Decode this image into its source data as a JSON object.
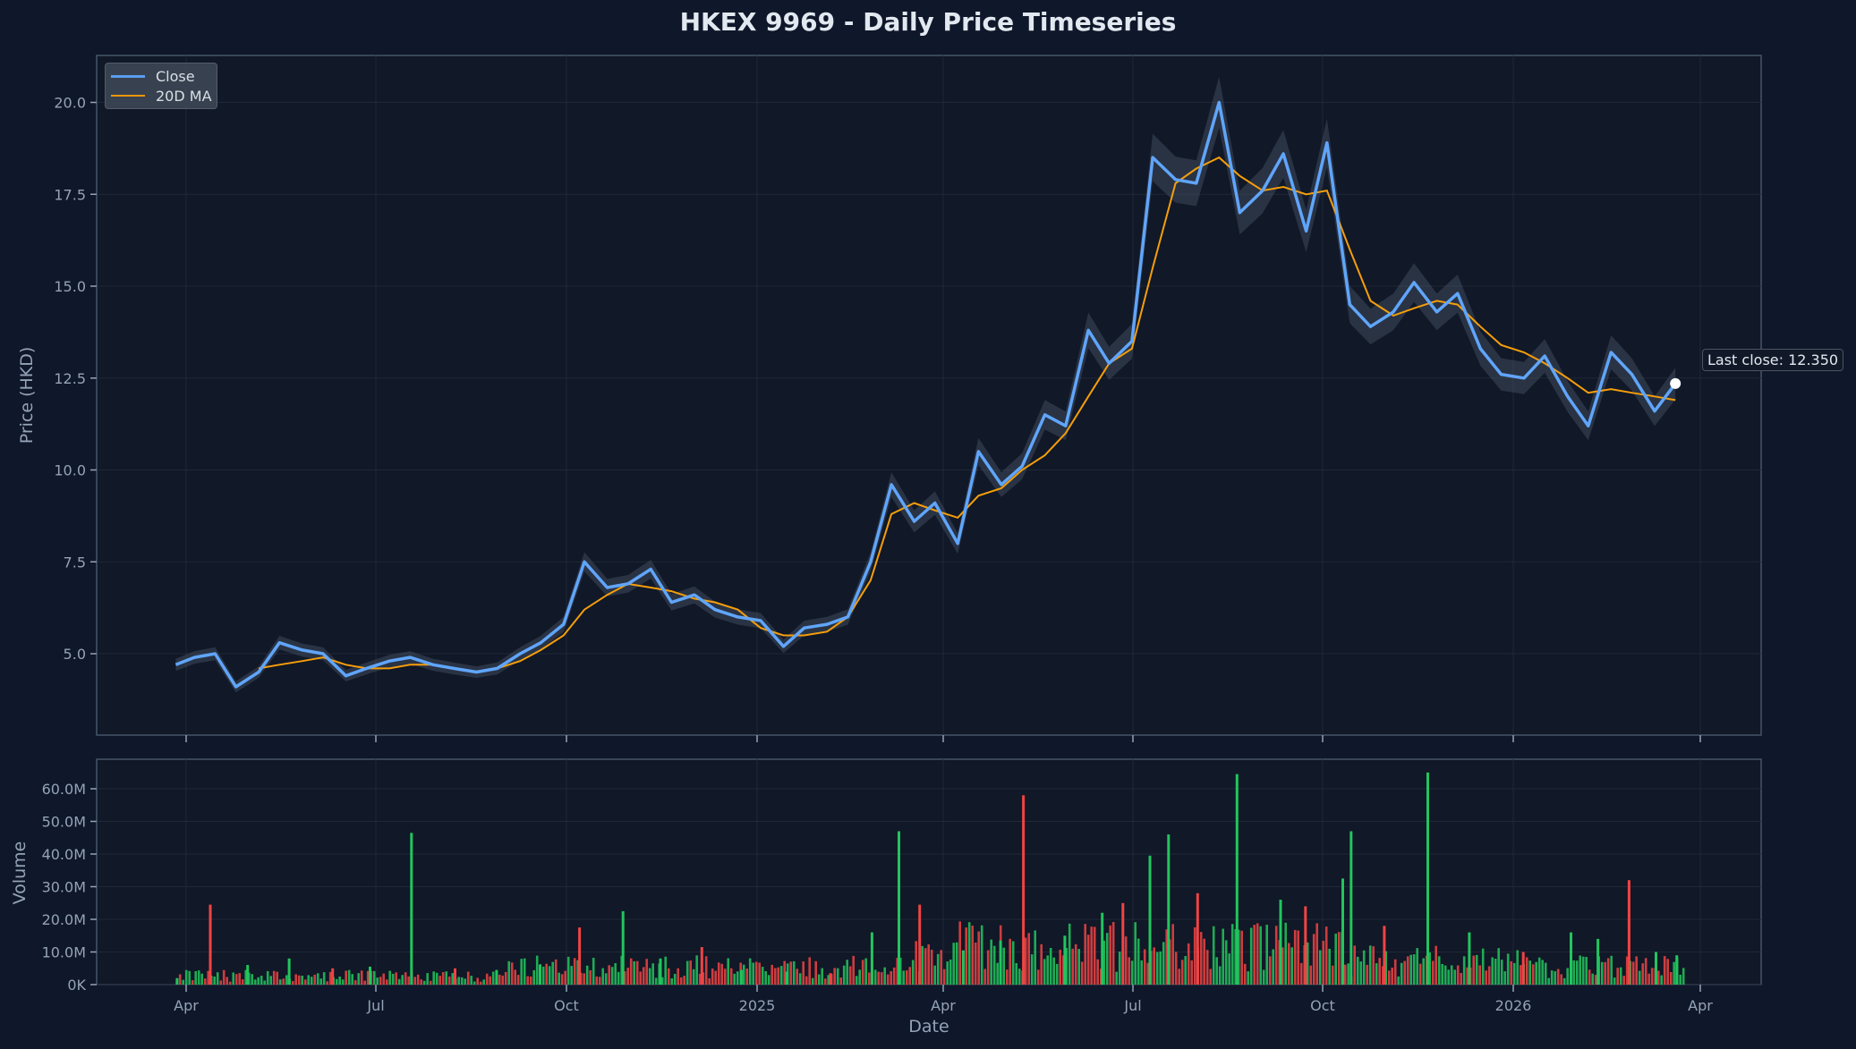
{
  "title": "HKEX 9969 - Daily Price Timeseries",
  "colors": {
    "background": "#0f172a",
    "plot_bg": "#111827",
    "close_line": "#60a5fa",
    "ma_line": "#f59e0b",
    "band": "#475569",
    "volume_up": "#22c55e",
    "volume_down": "#ef4444",
    "grid": "#1f2937",
    "axis": "#475569",
    "text": "#94a3b8"
  },
  "legend": {
    "items": [
      {
        "label": "Close",
        "color": "#60a5fa"
      },
      {
        "label": "20D MA",
        "color": "#f59e0b"
      }
    ]
  },
  "annotation": {
    "label": "Last close: 12.350"
  },
  "price_axis": {
    "label": "Price (HKD)",
    "ticks": [
      "5.0",
      "7.5",
      "10.0",
      "12.5",
      "15.0",
      "17.5",
      "20.0"
    ]
  },
  "volume_axis": {
    "label": "Volume",
    "ticks": [
      "0K",
      "10.0M",
      "20.0M",
      "30.0M",
      "40.0M",
      "50.0M",
      "60.0M"
    ]
  },
  "x_axis": {
    "label": "Date",
    "ticks": [
      "Apr",
      "Jul",
      "Oct",
      "2025",
      "Apr",
      "Jul",
      "Oct",
      "2026",
      "Apr"
    ]
  },
  "chart_data": [
    {
      "type": "line",
      "title": "HKEX 9969 - Daily Price Timeseries",
      "xlabel": "",
      "ylabel": "Price (HKD)",
      "ylim": [
        2.8,
        21.3
      ],
      "grid": true,
      "legend_position": "upper left",
      "x_tick_labels": [
        "Apr",
        "Jul",
        "Oct",
        "2025",
        "Apr",
        "Jul",
        "Oct",
        "2026",
        "Apr"
      ],
      "x": [
        "2024-03-27",
        "2024-04-05",
        "2024-04-15",
        "2024-04-25",
        "2024-05-06",
        "2024-05-16",
        "2024-05-27",
        "2024-06-06",
        "2024-06-17",
        "2024-06-27",
        "2024-07-08",
        "2024-07-18",
        "2024-07-29",
        "2024-08-08",
        "2024-08-19",
        "2024-08-29",
        "2024-09-09",
        "2024-09-19",
        "2024-09-30",
        "2024-10-10",
        "2024-10-21",
        "2024-10-31",
        "2024-11-11",
        "2024-11-21",
        "2024-12-02",
        "2024-12-12",
        "2024-12-23",
        "2025-01-03",
        "2025-01-14",
        "2025-01-24",
        "2025-02-04",
        "2025-02-14",
        "2025-02-25",
        "2025-03-07",
        "2025-03-18",
        "2025-03-28",
        "2025-04-08",
        "2025-04-18",
        "2025-04-29",
        "2025-05-09",
        "2025-05-20",
        "2025-05-30",
        "2025-06-10",
        "2025-06-20",
        "2025-07-01",
        "2025-07-11",
        "2025-07-22",
        "2025-08-01",
        "2025-08-12",
        "2025-08-22",
        "2025-09-02",
        "2025-09-12",
        "2025-09-23",
        "2025-10-03",
        "2025-10-14",
        "2025-10-24",
        "2025-11-04",
        "2025-11-14",
        "2025-11-25",
        "2025-12-05",
        "2025-12-16",
        "2025-12-26",
        "2026-01-06",
        "2026-01-16",
        "2026-01-27",
        "2026-02-06",
        "2026-02-17",
        "2026-02-27",
        "2026-03-10",
        "2026-03-20"
      ],
      "series": [
        {
          "name": "Close",
          "values": [
            4.7,
            4.9,
            5.0,
            4.1,
            4.5,
            5.3,
            5.1,
            5.0,
            4.4,
            4.6,
            4.8,
            4.9,
            4.7,
            4.6,
            4.5,
            4.6,
            5.0,
            5.3,
            5.8,
            7.5,
            6.8,
            6.9,
            7.3,
            6.4,
            6.6,
            6.2,
            6.0,
            5.9,
            5.2,
            5.7,
            5.8,
            6.0,
            7.5,
            9.6,
            8.6,
            9.1,
            8.0,
            10.5,
            9.6,
            10.1,
            11.5,
            11.2,
            13.8,
            12.9,
            13.5,
            18.5,
            17.9,
            17.8,
            20.0,
            17.0,
            17.6,
            18.6,
            16.5,
            18.9,
            14.5,
            13.9,
            14.3,
            15.1,
            14.3,
            14.8,
            13.3,
            12.6,
            12.5,
            13.1,
            12.0,
            11.2,
            13.2,
            12.6,
            11.6,
            12.35
          ]
        },
        {
          "name": "20D MA",
          "values": [
            null,
            null,
            null,
            null,
            4.6,
            4.7,
            4.8,
            4.9,
            4.7,
            4.6,
            4.6,
            4.7,
            4.7,
            4.6,
            4.5,
            4.6,
            4.8,
            5.1,
            5.5,
            6.2,
            6.6,
            6.9,
            6.8,
            6.7,
            6.5,
            6.4,
            6.2,
            5.7,
            5.5,
            5.5,
            5.6,
            6.0,
            7.0,
            8.8,
            9.1,
            8.9,
            8.7,
            9.3,
            9.5,
            10.0,
            10.4,
            11.0,
            12.0,
            12.9,
            13.3,
            15.5,
            17.8,
            18.2,
            18.5,
            18.0,
            17.6,
            17.7,
            17.5,
            17.6,
            16.0,
            14.6,
            14.2,
            14.4,
            14.6,
            14.5,
            13.9,
            13.4,
            13.2,
            12.9,
            12.5,
            12.1,
            12.2,
            12.1,
            12.0,
            11.9
          ]
        }
      ],
      "annotations": [
        "Last close: 12.350"
      ]
    },
    {
      "type": "bar",
      "xlabel": "Date",
      "ylabel": "Volume",
      "ylim": [
        0,
        66000000
      ],
      "y_tick_labels": [
        "0K",
        "10.0M",
        "20.0M",
        "30.0M",
        "40.0M",
        "50.0M",
        "60.0M"
      ],
      "x_tick_labels": [
        "Apr",
        "Jul",
        "Oct",
        "2025",
        "Apr",
        "Jul",
        "Oct",
        "2026",
        "Apr"
      ],
      "categories": [
        "2024-03-27",
        "2024-04-12",
        "2024-04-30",
        "2024-05-20",
        "2024-06-10",
        "2024-06-28",
        "2024-07-18",
        "2024-08-08",
        "2024-08-28",
        "2024-09-18",
        "2024-10-07",
        "2024-10-28",
        "2024-11-15",
        "2024-12-05",
        "2024-12-24",
        "2025-01-15",
        "2025-02-05",
        "2025-02-25",
        "2025-03-10",
        "2025-03-20",
        "2025-04-10",
        "2025-04-28",
        "2025-05-09",
        "2025-05-29",
        "2025-06-16",
        "2025-06-26",
        "2025-07-09",
        "2025-07-18",
        "2025-08-01",
        "2025-08-20",
        "2025-09-10",
        "2025-09-22",
        "2025-10-10",
        "2025-10-14",
        "2025-10-30",
        "2025-11-20",
        "2025-12-10",
        "2026-01-05",
        "2026-01-28",
        "2026-02-10",
        "2026-02-25",
        "2026-03-10",
        "2026-03-20"
      ],
      "series": [
        {
          "name": "Volume",
          "values": [
            2000000,
            24500000,
            6000000,
            8000000,
            5000000,
            5500000,
            46500000,
            5000000,
            4500000,
            6000000,
            17500000,
            22500000,
            8000000,
            11500000,
            4500000,
            4000000,
            3500000,
            16000000,
            47000000,
            24500000,
            10500000,
            13500000,
            58000000,
            15000000,
            22000000,
            25000000,
            39500000,
            46000000,
            28000000,
            64500000,
            26000000,
            24000000,
            32500000,
            47000000,
            18000000,
            65000000,
            16000000,
            10000000,
            16000000,
            14000000,
            32000000,
            10000000,
            9000000
          ]
        }
      ]
    }
  ]
}
